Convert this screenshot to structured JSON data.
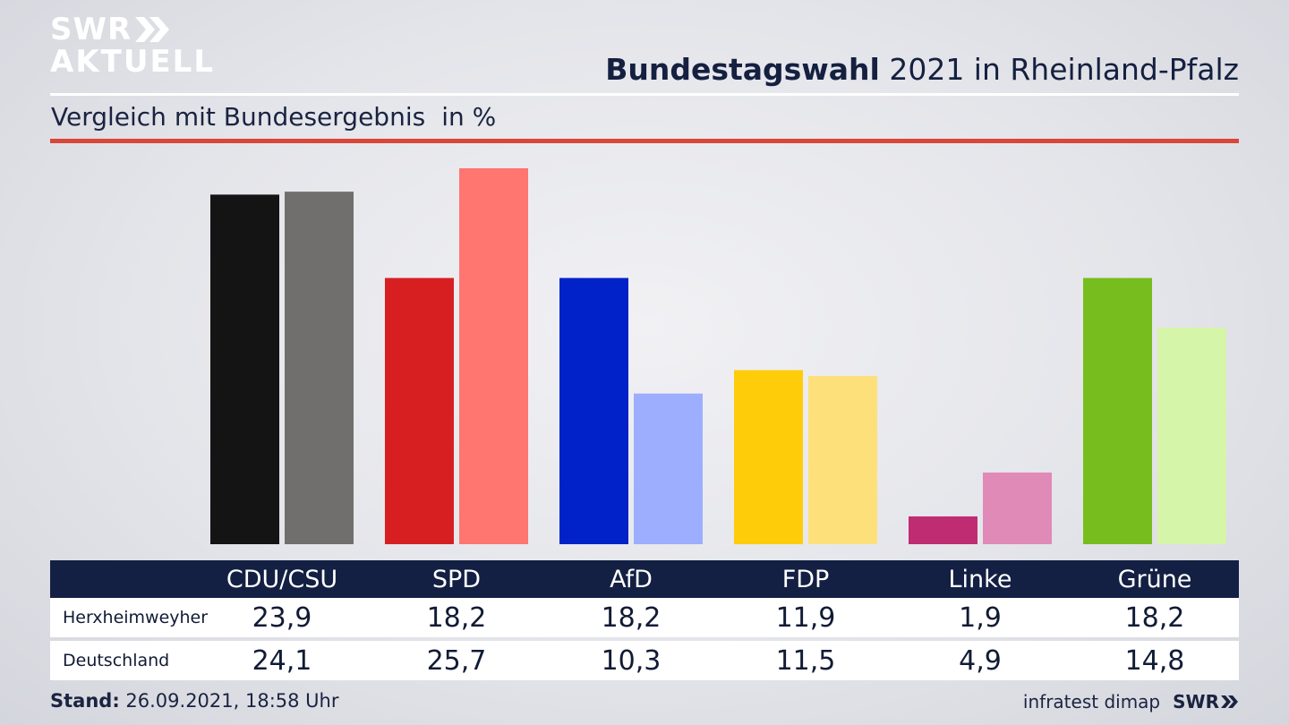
{
  "header": {
    "logo_line1": "SWR",
    "logo_line2": "AKTUELL",
    "title_bold": "Bundestagswahl",
    "title_rest": " 2021 in Rheinland-Pfalz",
    "subtitle": "Vergleich mit Bundesergebnis",
    "unit": "in %"
  },
  "chart_data": {
    "type": "bar",
    "title": "Bundestagswahl 2021 in Rheinland-Pfalz",
    "subtitle": "Vergleich mit Bundesergebnis",
    "unit": "in %",
    "categories": [
      "CDU/CSU",
      "SPD",
      "AfD",
      "FDP",
      "Linke",
      "Grüne"
    ],
    "series": [
      {
        "name": "Herxheimweyher",
        "values": [
          23.9,
          18.2,
          18.2,
          11.9,
          1.9,
          18.2
        ],
        "labels": [
          "23,9",
          "18,2",
          "18,2",
          "11,9",
          "1,9",
          "18,2"
        ],
        "colors": [
          "#141414",
          "#d71f22",
          "#0022c8",
          "#ffcc0a",
          "#bf2c72",
          "#78bd1e"
        ]
      },
      {
        "name": "Deutschland",
        "values": [
          24.1,
          25.7,
          10.3,
          11.5,
          4.9,
          14.8
        ],
        "labels": [
          "24,1",
          "25,7",
          "10,3",
          "11,5",
          "4,9",
          "14,8"
        ],
        "colors": [
          "#706f6d",
          "#ff7570",
          "#9daeff",
          "#fde07a",
          "#e08ab8",
          "#d5f5a8"
        ]
      }
    ],
    "ylim": [
      0,
      25.7
    ],
    "grid": false,
    "legend": "table-below"
  },
  "footer": {
    "stand_label": "Stand:",
    "stand_value": " 26.09.2021, 18:58 Uhr",
    "source": "infratest dimap",
    "brand": "SWR"
  }
}
